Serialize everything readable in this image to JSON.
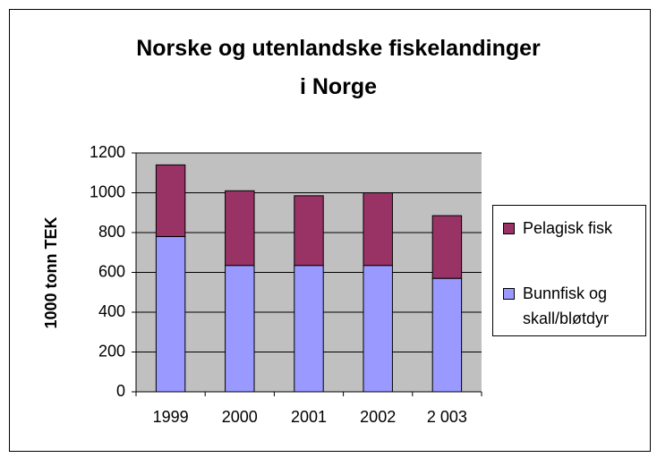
{
  "chart_data": {
    "type": "stacked_bar",
    "title": "Norske og utenlandske fiskelandinger i Norge",
    "y_label": "1000 tonn TEK",
    "categories": [
      "1999",
      "2000",
      "2001",
      "2002",
      "2 003"
    ],
    "series": [
      {
        "name": "Bunnfisk og skall/bløtdyr",
        "color": "#9999ff",
        "values": [
          780,
          635,
          635,
          635,
          570
        ]
      },
      {
        "name": "Pelagisk fisk",
        "color": "#993366",
        "values": [
          360,
          375,
          350,
          365,
          315
        ]
      }
    ],
    "ylim": [
      0,
      1200
    ],
    "yticks": [
      0,
      200,
      400,
      600,
      800,
      1000,
      1200
    ],
    "grid": true
  }
}
